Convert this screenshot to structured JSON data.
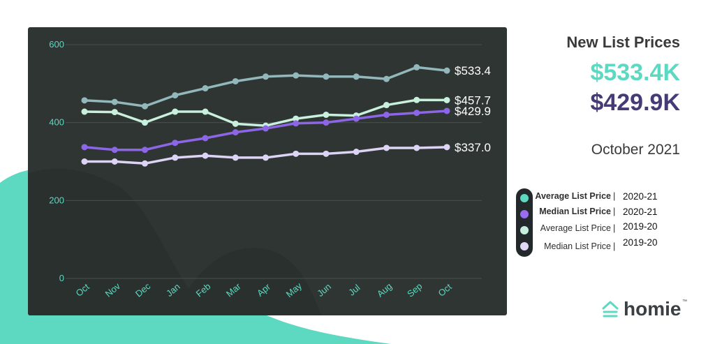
{
  "chart_data": {
    "type": "line",
    "categories": [
      "Oct",
      "Nov",
      "Dec",
      "Jan",
      "Feb",
      "Mar",
      "Apr",
      "May",
      "Jun",
      "Jul",
      "Aug",
      "Sep",
      "Oct"
    ],
    "ylim": [
      0,
      600
    ],
    "yticks": [
      "0",
      "200",
      "400",
      "600"
    ],
    "grid": true,
    "series": [
      {
        "name": "Average List Price 2020-21",
        "color": "#92b8bb",
        "end_label": "$533.4",
        "values": [
          457,
          453,
          442,
          470,
          488,
          506,
          518,
          521,
          518,
          518,
          512,
          542,
          533.4
        ]
      },
      {
        "name": "Average List Price 2019-20",
        "color": "#c8f0dc",
        "end_label": "$457.7",
        "values": [
          428,
          427,
          400,
          428,
          428,
          397,
          392,
          410,
          420,
          418,
          445,
          458,
          457.7
        ]
      },
      {
        "name": "Median List Price 2020-21",
        "color": "#8d66e8",
        "end_label": "$429.9",
        "values": [
          337,
          330,
          330,
          348,
          360,
          375,
          385,
          398,
          400,
          410,
          420,
          425,
          429.9
        ]
      },
      {
        "name": "Median List Price 2019-20",
        "color": "#ddd3f5",
        "end_label": "$337.0",
        "values": [
          300,
          300,
          295,
          310,
          315,
          310,
          310,
          320,
          320,
          325,
          335,
          335,
          337.0
        ]
      }
    ]
  },
  "colors": {
    "panel_bg": "#2f3533",
    "teal": "#5dd9c1",
    "purple": "#463b77",
    "axis_text": "#5dd9c1",
    "grid": "#465050"
  },
  "header": {
    "title": "New List Prices",
    "value_avg": "$533.4K",
    "value_median": "$429.9K",
    "period": "October 2021"
  },
  "legend": {
    "items": [
      {
        "label": "Average List Price",
        "period": "2020-21",
        "bold": true,
        "color": "#5dd9c1"
      },
      {
        "label": "Median List Price",
        "period": "2020-21",
        "bold": true,
        "color": "#9a6cf0"
      },
      {
        "label": "Average List Price",
        "period": "2019-20",
        "bold": false,
        "color": "#c6f0de"
      },
      {
        "label": "Median List Price",
        "period": "2019-20",
        "bold": false,
        "color": "#e1d8f6"
      }
    ],
    "separator": "|"
  },
  "brand": {
    "name": "homie",
    "tm": "™",
    "icon": "house-icon"
  }
}
